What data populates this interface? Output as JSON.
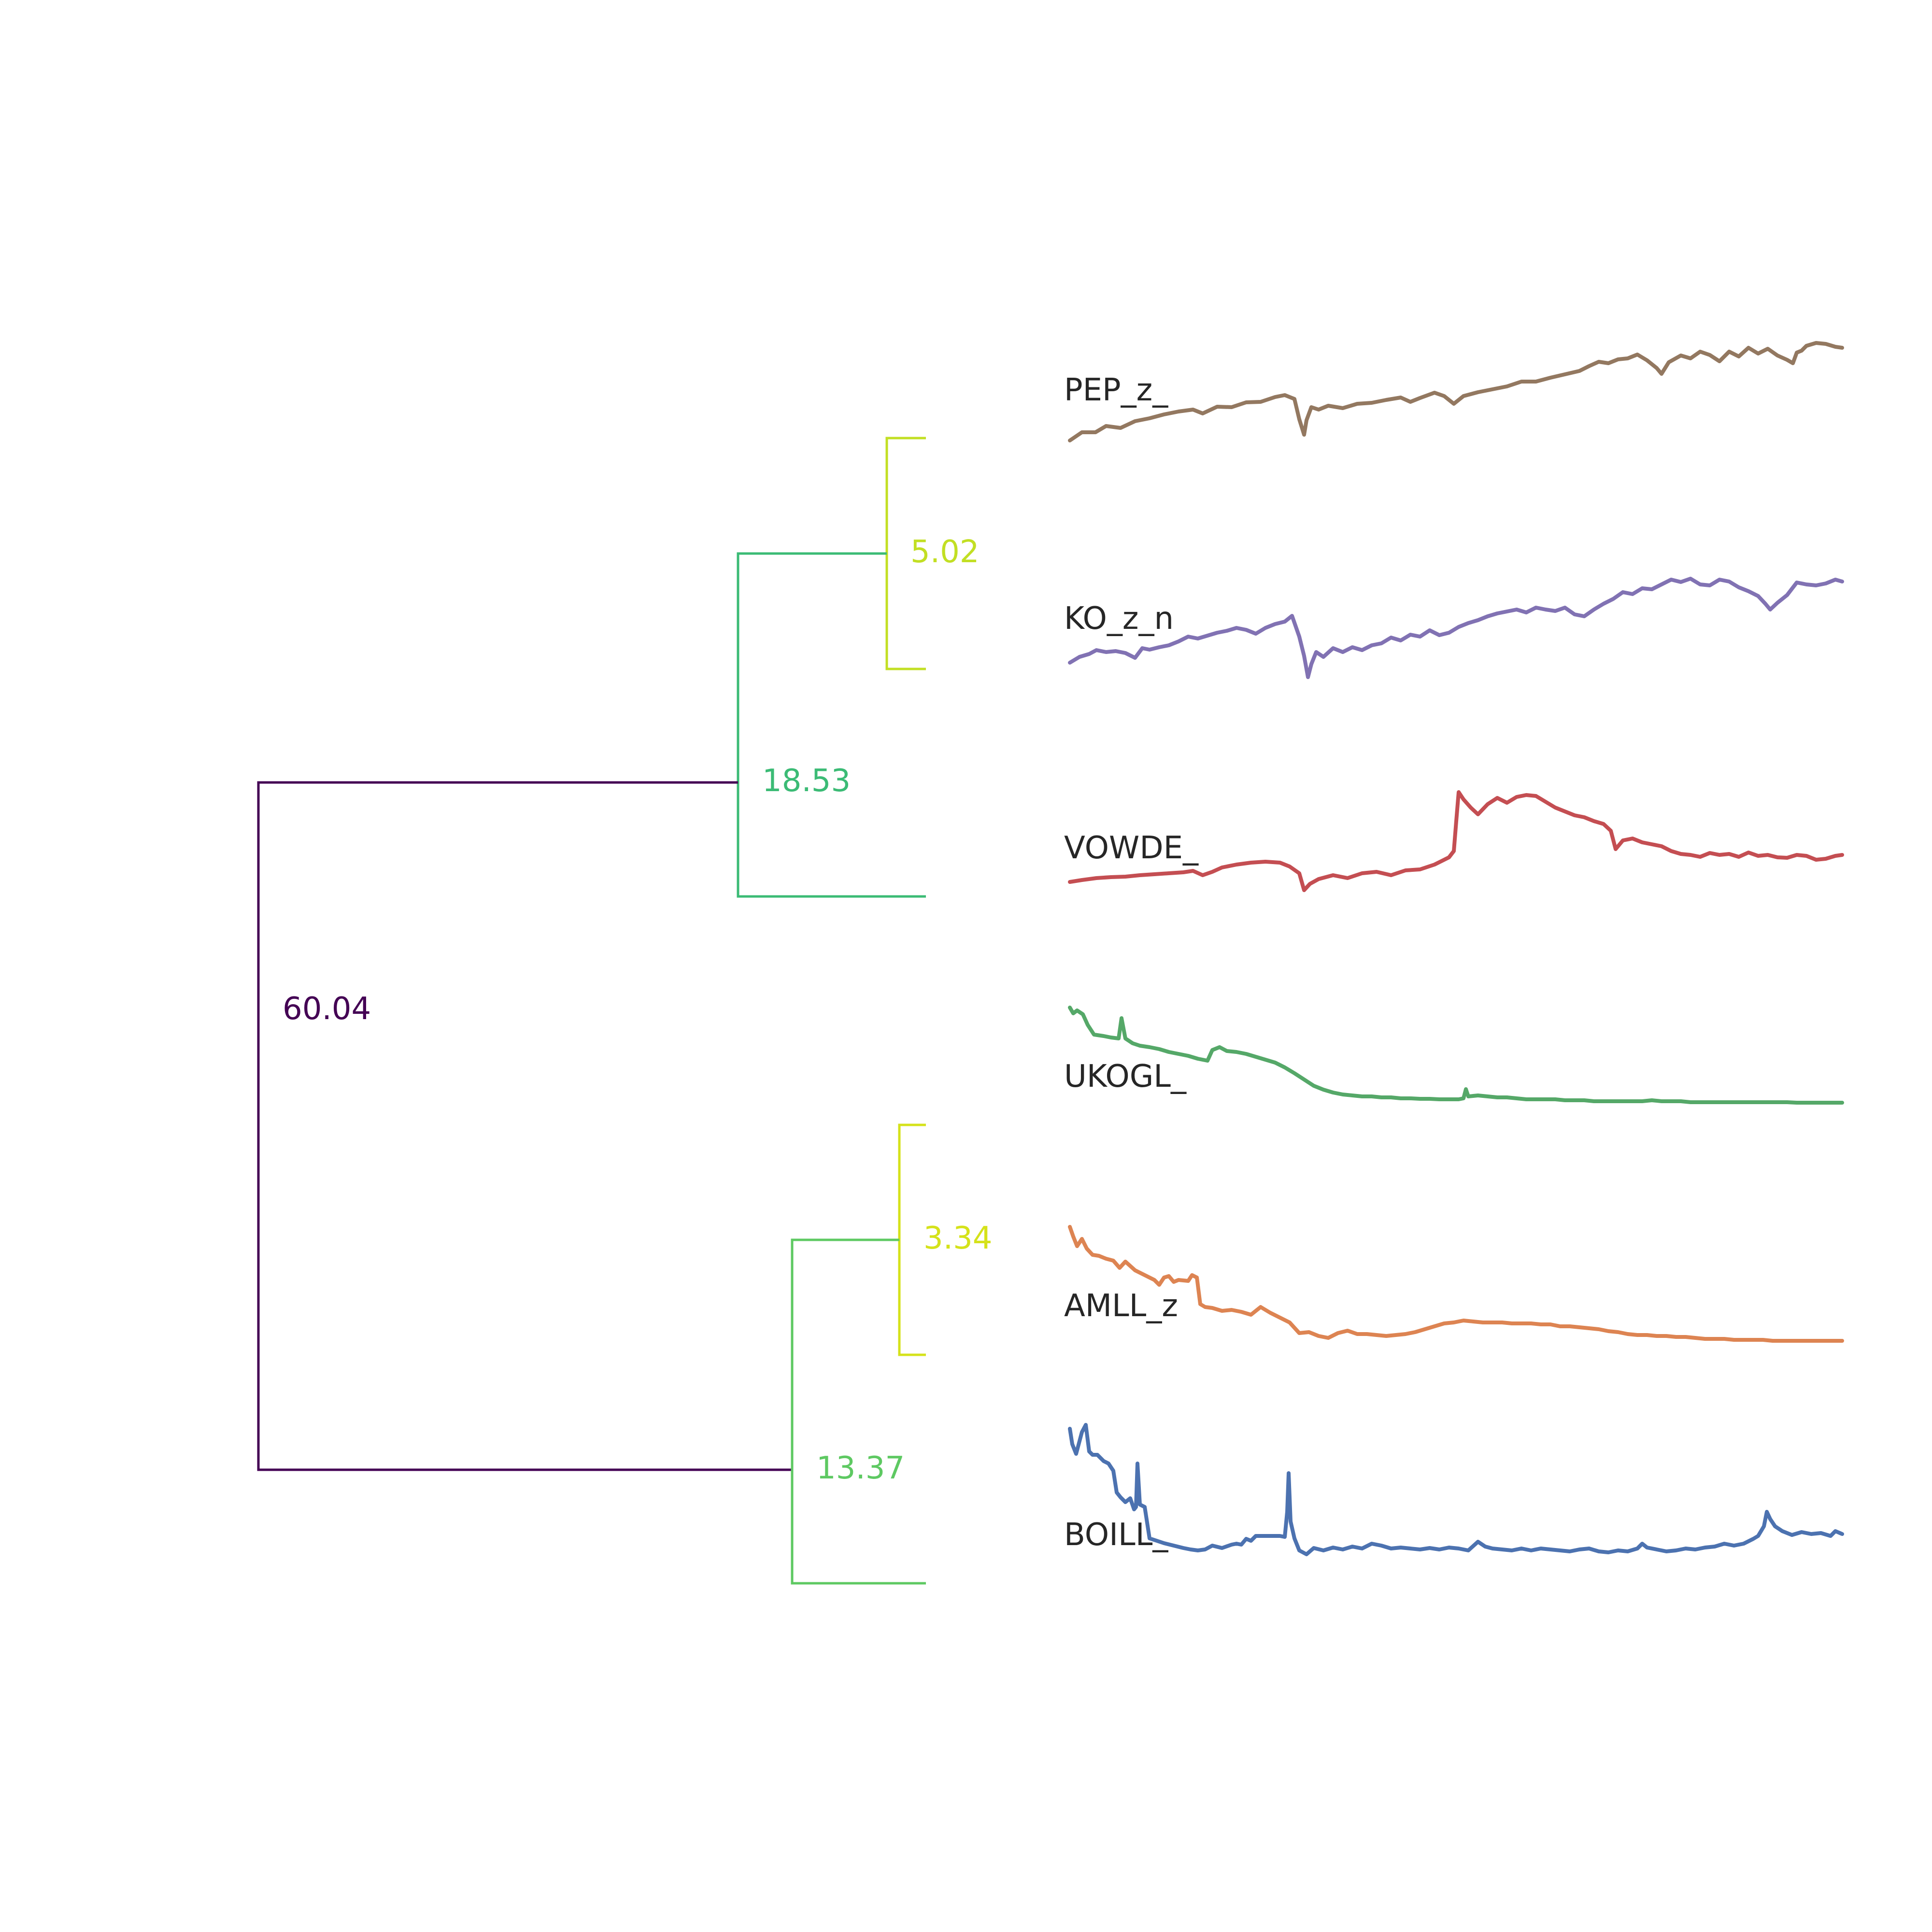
{
  "leaves": [
    {
      "label": "PEP_z_",
      "color": "#937860"
    },
    {
      "label": "KO_z_n",
      "color": "#8172b3"
    },
    {
      "label": "VOWDE_",
      "color": "#c44e52"
    },
    {
      "label": "UKOGL_",
      "color": "#55a868"
    },
    {
      "label": "AMLL_z",
      "color": "#dd8452"
    },
    {
      "label": "BOILL_",
      "color": "#4c72b0"
    }
  ],
  "merges": [
    {
      "height": "5.02",
      "color": "#c2df23"
    },
    {
      "height": "18.53",
      "color": "#3bbb75"
    },
    {
      "height": "60.04",
      "color": "#440154"
    },
    {
      "height": "3.34",
      "color": "#d5e21a"
    },
    {
      "height": "13.37",
      "color": "#5ec962"
    }
  ]
}
